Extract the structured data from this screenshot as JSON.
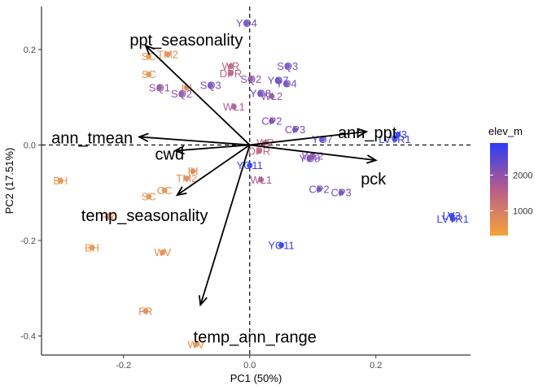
{
  "chart_data": {
    "type": "scatter",
    "subtype": "pca-biplot",
    "title": "",
    "xlabel": "PC1 (50%)",
    "ylabel": "PC2 (17.51%)",
    "xlim": [
      -0.33,
      0.35
    ],
    "ylim": [
      -0.44,
      0.29
    ],
    "xticks": [
      -0.2,
      0.0,
      0.2
    ],
    "xtick_labels": [
      "-0.2",
      "0.0",
      "0.2"
    ],
    "yticks": [
      -0.4,
      -0.2,
      0.0,
      0.2
    ],
    "ytick_labels": [
      "-0.4",
      "-0.2",
      "0.0",
      "0.2"
    ],
    "grid": false,
    "reference_lines": {
      "x": 0,
      "y": 0,
      "style": "dashed"
    },
    "color_scale": {
      "variable": "elev_m",
      "low_color": "#F5A33A",
      "high_color": "#2E3DF5",
      "range": [
        300,
        2900
      ],
      "ticks": [
        1000,
        2000
      ],
      "tick_labels": [
        "1000",
        "2000"
      ]
    },
    "legend": {
      "title": "elev_m",
      "position": "right"
    },
    "points": [
      {
        "label": "YO4",
        "x": -0.005,
        "y": 0.255,
        "elev": 2250
      },
      {
        "label": "TM2",
        "x": -0.13,
        "y": 0.19,
        "elev": 700
      },
      {
        "label": "SC",
        "x": -0.16,
        "y": 0.185,
        "elev": 600
      },
      {
        "label": "SC",
        "x": -0.16,
        "y": 0.148,
        "elev": 600
      },
      {
        "label": "WR",
        "x": -0.03,
        "y": 0.165,
        "elev": 1400
      },
      {
        "label": "SQ3",
        "x": 0.06,
        "y": 0.165,
        "elev": 2200
      },
      {
        "label": "SQ1",
        "x": -0.143,
        "y": 0.12,
        "elev": 2000
      },
      {
        "label": "IH",
        "x": -0.1,
        "y": 0.12,
        "elev": 800
      },
      {
        "label": "SQ3",
        "x": -0.062,
        "y": 0.125,
        "elev": 2200
      },
      {
        "label": "DPR",
        "x": -0.03,
        "y": 0.15,
        "elev": 1500
      },
      {
        "label": "SQ2",
        "x": 0.002,
        "y": 0.138,
        "elev": 2000
      },
      {
        "label": "YO7",
        "x": 0.045,
        "y": 0.135,
        "elev": 2400
      },
      {
        "label": "YO4",
        "x": 0.058,
        "y": 0.128,
        "elev": 2250
      },
      {
        "label": "SQ2",
        "x": -0.108,
        "y": 0.107,
        "elev": 2000
      },
      {
        "label": "YO8",
        "x": 0.017,
        "y": 0.108,
        "elev": 2300
      },
      {
        "label": "WL2",
        "x": 0.035,
        "y": 0.102,
        "elev": 1950
      },
      {
        "label": "WL1",
        "x": -0.025,
        "y": 0.08,
        "elev": 1700
      },
      {
        "label": "CP2",
        "x": 0.035,
        "y": 0.05,
        "elev": 2250
      },
      {
        "label": "CP3",
        "x": 0.072,
        "y": 0.032,
        "elev": 2250
      },
      {
        "label": "YO7",
        "x": 0.115,
        "y": 0.012,
        "elev": 2400
      },
      {
        "label": "LVTR1",
        "x": 0.23,
        "y": 0.012,
        "elev": 2800
      },
      {
        "label": "LV3",
        "x": 0.235,
        "y": 0.022,
        "elev": 2800
      },
      {
        "label": "WR",
        "x": 0.025,
        "y": 0.005,
        "elev": 1400
      },
      {
        "label": "DPR",
        "x": 0.015,
        "y": -0.013,
        "elev": 1500
      },
      {
        "label": "YO8",
        "x": 0.095,
        "y": -0.028,
        "elev": 2300
      },
      {
        "label": "WL2",
        "x": 0.1,
        "y": -0.023,
        "elev": 1950
      },
      {
        "label": "YO11",
        "x": 0.0,
        "y": -0.043,
        "elev": 2850
      },
      {
        "label": "BH",
        "x": -0.3,
        "y": -0.075,
        "elev": 550
      },
      {
        "label": "IH",
        "x": -0.09,
        "y": -0.055,
        "elev": 800
      },
      {
        "label": "TM2",
        "x": -0.1,
        "y": -0.07,
        "elev": 700
      },
      {
        "label": "WL1",
        "x": 0.018,
        "y": -0.073,
        "elev": 1700
      },
      {
        "label": "CC",
        "x": -0.135,
        "y": -0.095,
        "elev": 650
      },
      {
        "label": "SC",
        "x": -0.16,
        "y": -0.108,
        "elev": 600
      },
      {
        "label": "CP2",
        "x": 0.11,
        "y": -0.093,
        "elev": 2250
      },
      {
        "label": "CP3",
        "x": 0.145,
        "y": -0.1,
        "elev": 2250
      },
      {
        "label": "FR",
        "x": -0.225,
        "y": -0.15,
        "elev": 800
      },
      {
        "label": "LV3",
        "x": 0.32,
        "y": -0.148,
        "elev": 2800
      },
      {
        "label": "LVTR1",
        "x": 0.322,
        "y": -0.155,
        "elev": 2800
      },
      {
        "label": "BH",
        "x": -0.25,
        "y": -0.215,
        "elev": 550
      },
      {
        "label": "WV",
        "x": -0.138,
        "y": -0.225,
        "elev": 650
      },
      {
        "label": "YO11",
        "x": 0.05,
        "y": -0.21,
        "elev": 2850
      },
      {
        "label": "FR",
        "x": -0.165,
        "y": -0.348,
        "elev": 800
      },
      {
        "label": "WV",
        "x": -0.085,
        "y": -0.418,
        "elev": 650
      }
    ],
    "loadings": [
      {
        "label": "ppt_seasonality",
        "x": -0.165,
        "y": 0.208
      },
      {
        "label": "ann_tmean",
        "x": -0.175,
        "y": 0.017
      },
      {
        "label": "cwd",
        "x": -0.118,
        "y": -0.012
      },
      {
        "label": "temp_seasonality",
        "x": -0.115,
        "y": -0.105
      },
      {
        "label": "temp_ann_range",
        "x": -0.078,
        "y": -0.335
      },
      {
        "label": "ann_ppt",
        "x": 0.185,
        "y": 0.028
      },
      {
        "label": "pck",
        "x": 0.2,
        "y": -0.032
      }
    ]
  }
}
